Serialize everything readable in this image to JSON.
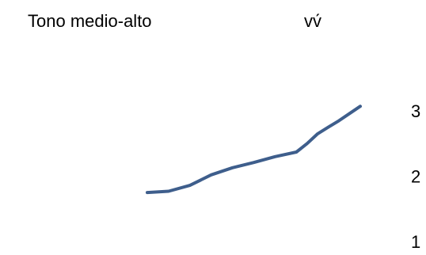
{
  "header": {
    "title": "Tono medio-alto",
    "subtitle": "vv́"
  },
  "chart_data": {
    "type": "line",
    "title": "Tono medio-alto",
    "xlabel": "",
    "ylabel": "",
    "ylim": [
      1,
      3
    ],
    "y_ticks": [
      "1",
      "2",
      "3"
    ],
    "axis_position": "right",
    "grid": false,
    "legend": "none",
    "line_color": "#3e5e8c",
    "series": [
      {
        "x": [
          0,
          0.1,
          0.2,
          0.3,
          0.4,
          0.5,
          0.6,
          0.7,
          0.75,
          0.8,
          0.85,
          0.9,
          0.95,
          1.0
        ],
        "values": [
          1.75,
          1.77,
          1.86,
          2.02,
          2.13,
          2.21,
          2.3,
          2.37,
          2.5,
          2.65,
          2.75,
          2.85,
          2.96,
          3.07
        ]
      }
    ]
  }
}
